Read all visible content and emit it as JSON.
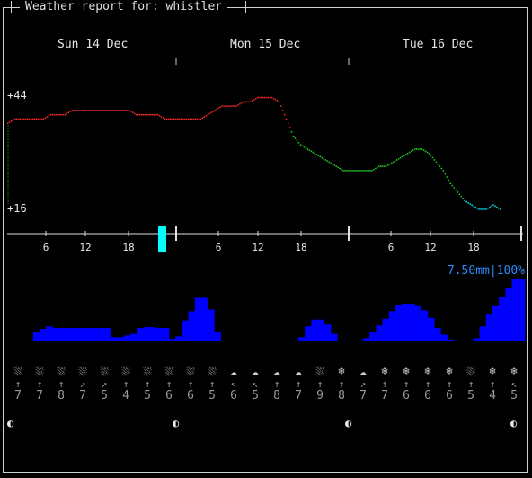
{
  "title": "Weather report for: whistler",
  "days": [
    "Sun 14 Dec",
    "Mon 15 Dec",
    "Tue 16 Dec"
  ],
  "temp_axis": {
    "max_label": "+44",
    "min_label": "+16"
  },
  "hour_labels": [
    "6",
    "12",
    "18",
    "6",
    "12",
    "18",
    "6",
    "12",
    "18"
  ],
  "precip_label": "7.50mm|100%",
  "colors": {
    "precip": "#0000ff",
    "now_marker": "#00ffff",
    "precip_text": "#2b8cff"
  },
  "chart_data": {
    "type": "line",
    "ylim": [
      16,
      44
    ],
    "temperature": [
      [
        0,
        37
      ],
      [
        4,
        38
      ],
      [
        8,
        38
      ],
      [
        12,
        38
      ],
      [
        16,
        38
      ],
      [
        20,
        38
      ],
      [
        24,
        39
      ],
      [
        28,
        39
      ],
      [
        32,
        39
      ],
      [
        36,
        40
      ],
      [
        40,
        40
      ],
      [
        44,
        40
      ],
      [
        48,
        40
      ],
      [
        52,
        40
      ],
      [
        56,
        40
      ],
      [
        60,
        40
      ],
      [
        64,
        40
      ],
      [
        68,
        40
      ],
      [
        72,
        39
      ],
      [
        76,
        39
      ],
      [
        80,
        39
      ],
      [
        84,
        39
      ],
      [
        88,
        38
      ],
      [
        92,
        38
      ],
      [
        96,
        38
      ],
      [
        100,
        38
      ],
      [
        104,
        38
      ],
      [
        108,
        38
      ],
      [
        112,
        39
      ],
      [
        116,
        40
      ],
      [
        120,
        41
      ],
      [
        124,
        41
      ],
      [
        128,
        41
      ],
      [
        132,
        42
      ],
      [
        136,
        42
      ],
      [
        140,
        43
      ],
      [
        144,
        43
      ],
      [
        148,
        43
      ],
      [
        152,
        42
      ],
      [
        156,
        38
      ],
      [
        160,
        34
      ],
      [
        164,
        32
      ],
      [
        168,
        31
      ],
      [
        172,
        30
      ],
      [
        176,
        29
      ],
      [
        180,
        28
      ],
      [
        184,
        27
      ],
      [
        188,
        26
      ],
      [
        192,
        26
      ],
      [
        196,
        26
      ],
      [
        200,
        26
      ],
      [
        204,
        26
      ],
      [
        208,
        27
      ],
      [
        212,
        27
      ],
      [
        216,
        28
      ],
      [
        220,
        29
      ],
      [
        224,
        30
      ],
      [
        228,
        31
      ],
      [
        232,
        31
      ],
      [
        236,
        30
      ],
      [
        240,
        28
      ],
      [
        244,
        26
      ],
      [
        248,
        23
      ],
      [
        252,
        21
      ],
      [
        256,
        19
      ],
      [
        260,
        18
      ],
      [
        264,
        17
      ],
      [
        268,
        17
      ],
      [
        272,
        18
      ],
      [
        276,
        17
      ]
    ],
    "precip_mm": [
      0.1,
      0,
      0,
      0.1,
      1.1,
      1.5,
      1.8,
      1.6,
      1.6,
      1.6,
      1.6,
      1.6,
      1.6,
      1.6,
      1.6,
      1.6,
      0.5,
      0.5,
      0.7,
      0.9,
      1.6,
      1.7,
      1.7,
      1.6,
      1.6,
      0.3,
      0.6,
      2.5,
      3.6,
      5.2,
      5.2,
      3.8,
      1.1,
      0,
      0,
      0,
      0,
      0,
      0,
      0,
      0,
      0,
      0,
      0,
      0,
      0.5,
      1.8,
      2.6,
      2.6,
      2.0,
      0.9,
      0.1,
      0,
      0,
      0.1,
      0.4,
      1.1,
      1.9,
      2.7,
      3.6,
      4.3,
      4.5,
      4.5,
      4.2,
      3.7,
      2.8,
      1.6,
      0.8,
      0.2,
      0,
      0,
      0,
      0.4,
      1.8,
      3.2,
      4.2,
      5.3,
      6.4,
      7.5,
      7.5
    ],
    "hours_per_day": 24,
    "days_shown": 3
  },
  "forecast": [
    {
      "icon": "cloud-rain-icon",
      "glyph": "⛆",
      "dir": "↑",
      "speed": "7"
    },
    {
      "icon": "cloud-rain-icon",
      "glyph": "⛆",
      "dir": "↑",
      "speed": "7"
    },
    {
      "icon": "cloud-rain-icon",
      "glyph": "⛆",
      "dir": "↑",
      "speed": "8"
    },
    {
      "icon": "cloud-rain-icon",
      "glyph": "⛆",
      "dir": "↗",
      "speed": "7"
    },
    {
      "icon": "cloud-rain-icon",
      "glyph": "⛆",
      "dir": "↗",
      "speed": "5"
    },
    {
      "icon": "cloud-rain-icon",
      "glyph": "⛆",
      "dir": "↑",
      "speed": "4"
    },
    {
      "icon": "cloud-rain-icon",
      "glyph": "⛆",
      "dir": "↑",
      "speed": "5"
    },
    {
      "icon": "cloud-rain-icon",
      "glyph": "⛆",
      "dir": "↑",
      "speed": "6"
    },
    {
      "icon": "cloud-rain-icon",
      "glyph": "⛆",
      "dir": "↑",
      "speed": "6"
    },
    {
      "icon": "cloud-rain-icon",
      "glyph": "⛆",
      "dir": "↑",
      "speed": "5"
    },
    {
      "icon": "cloud-icon",
      "glyph": "☁",
      "dir": "↖",
      "speed": "6"
    },
    {
      "icon": "cloud-icon",
      "glyph": "☁",
      "dir": "↖",
      "speed": "5"
    },
    {
      "icon": "cloud-icon",
      "glyph": "☁",
      "dir": "↑",
      "speed": "8"
    },
    {
      "icon": "cloud-icon",
      "glyph": "☁",
      "dir": "↑",
      "speed": "7"
    },
    {
      "icon": "cloud-rain-icon",
      "glyph": "⛆",
      "dir": "↑",
      "speed": "9"
    },
    {
      "icon": "snow-icon",
      "glyph": "❄",
      "dir": "↑",
      "speed": "8"
    },
    {
      "icon": "cloud-icon",
      "glyph": "☁",
      "dir": "↗",
      "speed": "7"
    },
    {
      "icon": "snow-icon",
      "glyph": "❄",
      "dir": "↑",
      "speed": "7"
    },
    {
      "icon": "snow-icon",
      "glyph": "❄",
      "dir": "↑",
      "speed": "6"
    },
    {
      "icon": "snow-icon",
      "glyph": "❄",
      "dir": "↑",
      "speed": "6"
    },
    {
      "icon": "snow-icon",
      "glyph": "❄",
      "dir": "↑",
      "speed": "6"
    },
    {
      "icon": "cloud-snow-icon",
      "glyph": "⛆",
      "dir": "↑",
      "speed": "5"
    },
    {
      "icon": "snow-icon",
      "glyph": "❄",
      "dir": "↑",
      "speed": "4"
    },
    {
      "icon": "snow-icon",
      "glyph": "❄",
      "dir": "↖",
      "speed": "5"
    }
  ],
  "moon": [
    "◐",
    "◐",
    "◐",
    "◐"
  ]
}
